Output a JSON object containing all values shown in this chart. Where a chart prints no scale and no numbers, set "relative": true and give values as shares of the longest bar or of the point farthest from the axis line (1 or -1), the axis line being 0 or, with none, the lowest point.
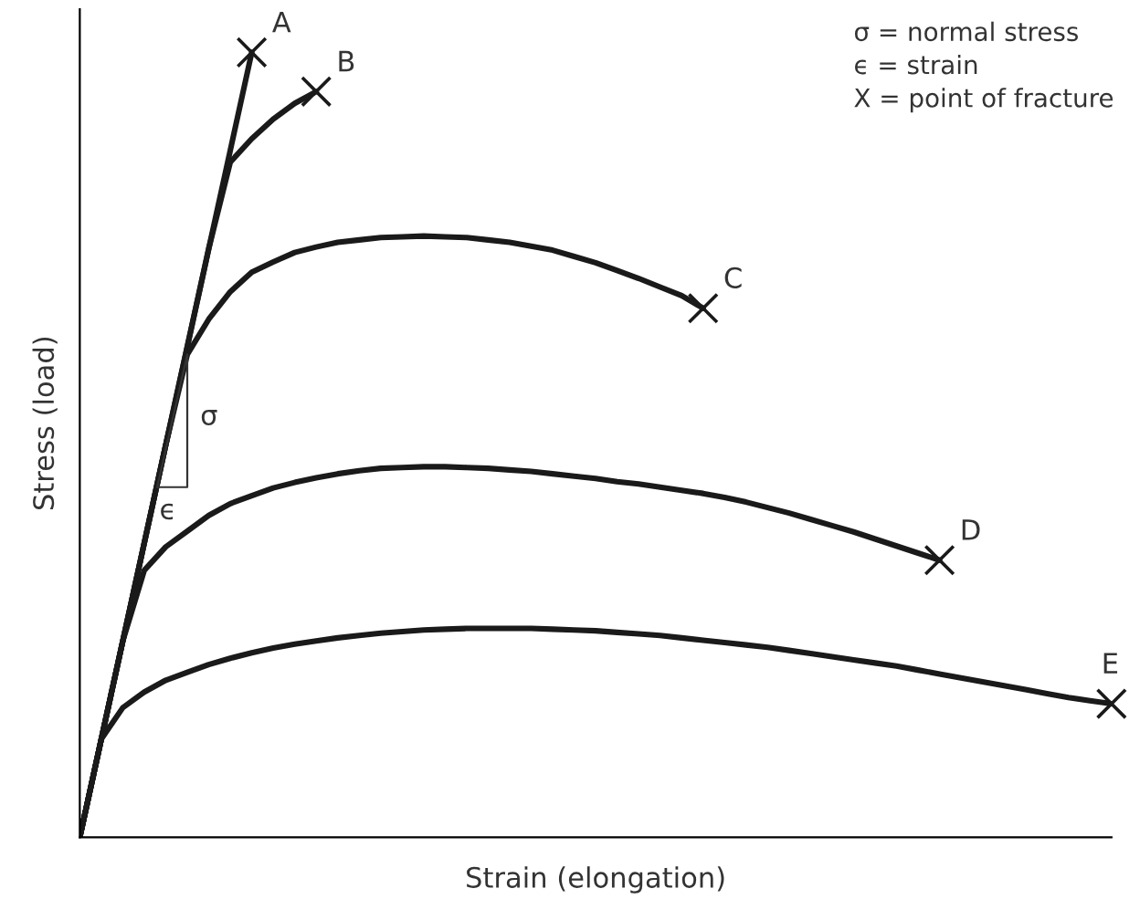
{
  "chart_data": {
    "type": "line",
    "relative": true,
    "xlabel": "Strain (elongation)",
    "ylabel": "Stress (load)",
    "line_style": "solid",
    "annotations": [
      "σ = normal stress",
      "ϵ = strain",
      "X = point of fracture",
      "σ",
      "ϵ"
    ],
    "categories": [
      null,
      null,
      null,
      null,
      null,
      null,
      null,
      null,
      null,
      null,
      null,
      null,
      null,
      null,
      null,
      null,
      null,
      null,
      null,
      null,
      null,
      null,
      null,
      null,
      null,
      null,
      null,
      null,
      null,
      null,
      null,
      null,
      null,
      null,
      null,
      null,
      null,
      null,
      null,
      null,
      null,
      null,
      null,
      null,
      null,
      null,
      null,
      null,
      null
    ],
    "series": [
      {
        "name": "A",
        "color": "#1a1a1a",
        "values": [
          0,
          0.125,
          0.25,
          0.375,
          0.5,
          0.625,
          0.75,
          0.875,
          1.0,
          null,
          null,
          null,
          null,
          null,
          null,
          null,
          null,
          null,
          null,
          null,
          null,
          null,
          null,
          null,
          null,
          null,
          null,
          null,
          null,
          null,
          null,
          null,
          null,
          null,
          null,
          null,
          null,
          null,
          null,
          null,
          null,
          null,
          null,
          null,
          null,
          null,
          null,
          null,
          null
        ]
      },
      {
        "name": "B",
        "color": "#1a1a1a",
        "values": [
          0,
          0.125,
          0.25,
          0.375,
          0.5,
          0.625,
          0.75,
          0.86,
          0.89,
          0.915,
          0.935,
          0.95,
          null,
          null,
          null,
          null,
          null,
          null,
          null,
          null,
          null,
          null,
          null,
          null,
          null,
          null,
          null,
          null,
          null,
          null,
          null,
          null,
          null,
          null,
          null,
          null,
          null,
          null,
          null,
          null,
          null,
          null,
          null,
          null,
          null,
          null,
          null,
          null,
          null
        ]
      },
      {
        "name": "C",
        "color": "#1a1a1a",
        "values": [
          0,
          0.125,
          0.25,
          0.375,
          0.5,
          0.615,
          0.66,
          0.695,
          0.72,
          0.733,
          0.745,
          0.752,
          0.758,
          0.761,
          0.764,
          0.765,
          0.766,
          0.765,
          0.764,
          0.761,
          0.758,
          0.753,
          0.748,
          0.74,
          0.732,
          0.722,
          0.712,
          0.701,
          0.69,
          0.674,
          null,
          null,
          null,
          null,
          null,
          null,
          null,
          null,
          null,
          null,
          null,
          null,
          null,
          null,
          null,
          null,
          null,
          null,
          null
        ]
      },
      {
        "name": "D",
        "color": "#1a1a1a",
        "values": [
          0,
          0.125,
          0.25,
          0.34,
          0.37,
          0.39,
          0.41,
          0.425,
          0.435,
          0.445,
          0.452,
          0.458,
          0.463,
          0.467,
          0.47,
          0.471,
          0.472,
          0.472,
          0.471,
          0.47,
          0.468,
          0.466,
          0.463,
          0.46,
          0.457,
          0.453,
          0.45,
          0.446,
          0.442,
          0.438,
          0.433,
          0.427,
          0.42,
          0.413,
          0.405,
          0.397,
          0.389,
          0.38,
          0.371,
          0.362,
          0.353,
          null,
          null,
          null,
          null,
          null,
          null,
          null,
          null
        ]
      },
      {
        "name": "E",
        "color": "#1a1a1a",
        "values": [
          0,
          0.125,
          0.165,
          0.185,
          0.2,
          0.21,
          0.22,
          0.228,
          0.235,
          0.241,
          0.246,
          0.25,
          0.254,
          0.257,
          0.26,
          0.262,
          0.264,
          0.265,
          0.266,
          0.266,
          0.266,
          0.266,
          0.265,
          0.264,
          0.263,
          0.261,
          0.259,
          0.257,
          0.254,
          0.251,
          0.248,
          0.245,
          0.242,
          0.238,
          0.234,
          0.23,
          0.226,
          0.222,
          0.218,
          0.213,
          0.208,
          0.203,
          0.198,
          0.193,
          0.188,
          0.183,
          0.178,
          0.174,
          0.17
        ]
      }
    ]
  }
}
